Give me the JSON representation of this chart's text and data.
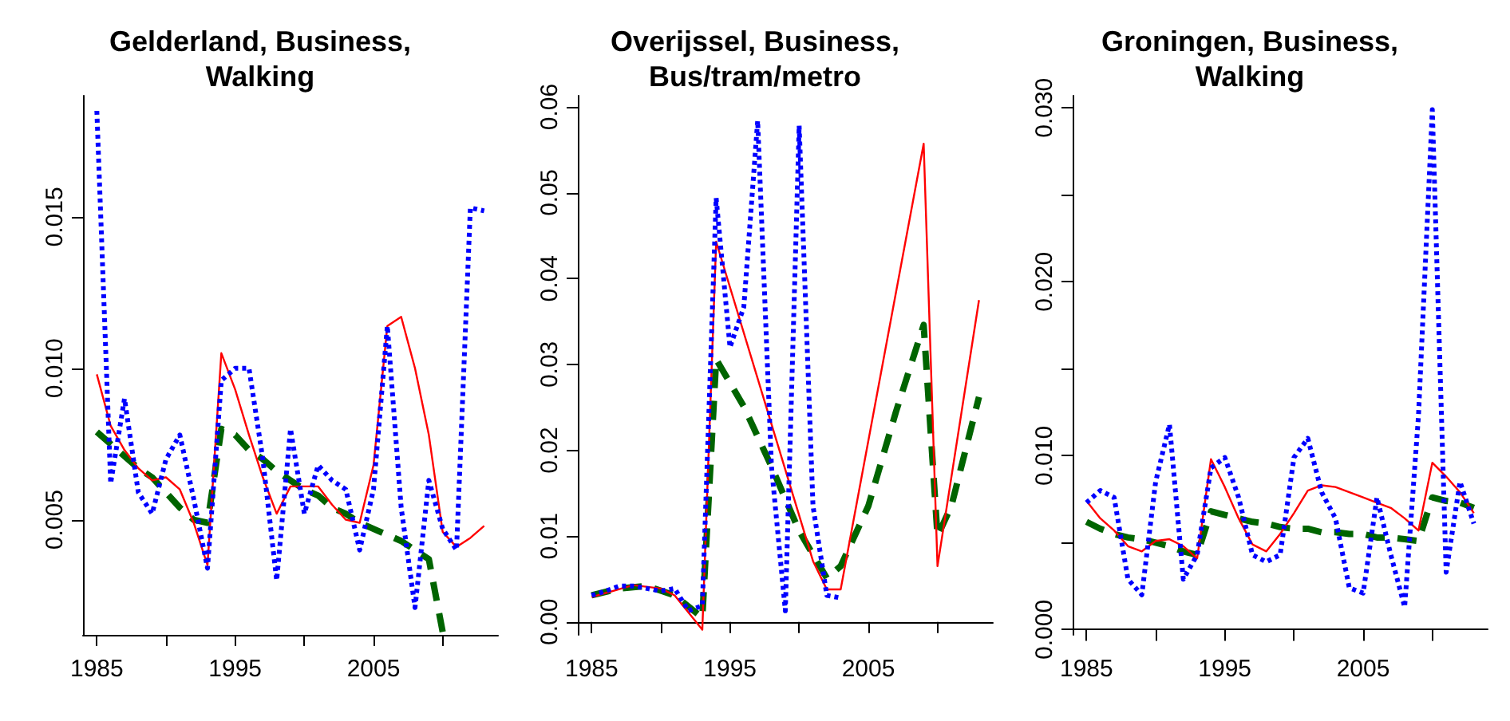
{
  "chart_data": [
    {
      "type": "line",
      "title": "Gelderland, Business,\nWalking",
      "grid": false,
      "marker": "none",
      "xlim": [
        1984,
        2014
      ],
      "xticks": [
        1985,
        {
          "value": 1990,
          "label": null
        },
        1995,
        {
          "value": 2000,
          "label": null
        },
        2005,
        {
          "value": 2010,
          "label": null
        }
      ],
      "ylim": [
        0.0012,
        0.019
      ],
      "yticks": [
        0.005,
        {
          "value": 0.01,
          "label": "0.010"
        },
        0.015
      ],
      "series": [
        {
          "color": "#0000ff",
          "line_style": "dotted",
          "x": [
            1985,
            1986,
            1987,
            1988,
            1989,
            1990,
            1991,
            1992,
            1993,
            1994,
            1995,
            1996,
            1997,
            1998,
            1999,
            2000,
            2001,
            2002,
            2003,
            2004,
            2005,
            2006,
            2007,
            2008,
            2009,
            2010,
            2011,
            2012,
            2013
          ],
          "values": [
            0.0185,
            0.0062,
            0.009,
            0.0059,
            0.0052,
            0.007,
            0.0078,
            0.0057,
            0.0034,
            0.0096,
            0.01,
            0.01,
            0.007,
            0.003,
            0.008,
            0.0052,
            0.0068,
            0.0063,
            0.006,
            0.004,
            0.006,
            0.0114,
            0.0054,
            0.0021,
            0.0063,
            0.0047,
            0.004,
            0.0153,
            0.0152
          ]
        },
        {
          "color": "#ff0000",
          "line_style": "solid",
          "x": [
            1985,
            1986,
            1987,
            1988,
            1989,
            1990,
            1991,
            1992,
            1993,
            1994,
            1995,
            1996,
            1997,
            1998,
            1999,
            2000,
            2001,
            2002,
            2003,
            2004,
            2005,
            2006,
            2007,
            2008,
            2009,
            2010,
            2011,
            2012,
            2013
          ],
          "values": [
            0.0098,
            0.0081,
            0.0073,
            0.0067,
            0.0063,
            0.0064,
            0.006,
            0.0049,
            0.0035,
            0.0105,
            0.0093,
            0.0078,
            0.0064,
            0.0052,
            0.0061,
            0.0061,
            0.0061,
            0.0055,
            0.005,
            0.0049,
            0.0068,
            0.0114,
            0.0117,
            0.01,
            0.0078,
            0.0046,
            0.0041,
            0.0044,
            0.0048
          ]
        },
        {
          "color": "#006400",
          "line_style": "dashed",
          "x": [
            1985,
            1986,
            1987,
            1988,
            1989,
            1990,
            1991,
            1992,
            1993,
            1994,
            1995,
            1996,
            1997,
            1998,
            1999,
            2000,
            2001,
            2002,
            2003,
            2004,
            2005,
            2006,
            2007,
            2008,
            2009,
            2010
          ],
          "values": [
            0.0079,
            0.0075,
            0.0071,
            0.0067,
            0.0064,
            0.0059,
            0.0054,
            0.005,
            0.0049,
            0.008,
            0.0078,
            0.0073,
            0.007,
            0.0066,
            0.0063,
            0.006,
            0.0058,
            0.0054,
            0.0052,
            0.0049,
            0.0047,
            0.0045,
            0.0043,
            0.004,
            0.0037,
            0.0013
          ]
        }
      ]
    },
    {
      "type": "line",
      "title": "Overijssel, Business,\nBus/tram/metro",
      "grid": false,
      "marker": "none",
      "xlim": [
        1984,
        2014
      ],
      "xticks": [
        1985,
        {
          "value": 1990,
          "label": null
        },
        1995,
        {
          "value": 2000,
          "label": null
        },
        2005,
        {
          "value": 2010,
          "label": null
        }
      ],
      "ylim": [
        -0.0015,
        0.0613
      ],
      "yticks": [
        {
          "value": 0,
          "label": "0.00"
        },
        0.01,
        0.02,
        0.03,
        0.04,
        0.05,
        0.06
      ],
      "series": [
        {
          "color": "#0000ff",
          "line_style": "dotted",
          "x": [
            1985,
            1986,
            1987,
            1988,
            1989,
            1990,
            1991,
            1992,
            1993,
            1994,
            1995,
            1996,
            1997,
            1998,
            1999,
            2000,
            2001,
            2002,
            2003
          ],
          "values": [
            0.0031,
            0.0036,
            0.0042,
            0.0042,
            0.0039,
            0.0036,
            0.0039,
            0.0013,
            0.0019,
            0.0494,
            0.032,
            0.0367,
            0.0584,
            0.0181,
            0.0013,
            0.0578,
            0.0135,
            0.0031,
            0.0028
          ]
        },
        {
          "color": "#ff0000",
          "line_style": "solid",
          "x": [
            1985,
            1988,
            1990,
            1991,
            1993,
            1994,
            2001,
            2002,
            2003,
            2009,
            2010,
            2013
          ],
          "values": [
            0.0029,
            0.0043,
            0.0039,
            0.0031,
            -0.0009,
            0.0443,
            0.0071,
            0.0038,
            0.0038,
            0.0557,
            0.0065,
            0.0375
          ]
        },
        {
          "color": "#006400",
          "line_style": "dashed",
          "x": [
            1985,
            1987,
            1989,
            1991,
            1993,
            1994,
            1996,
            1998,
            2000,
            2002,
            2003,
            2005,
            2007,
            2009,
            2010,
            2011,
            2013
          ],
          "values": [
            0.0031,
            0.0039,
            0.0042,
            0.0031,
            0.0005,
            0.0306,
            0.0251,
            0.0181,
            0.0106,
            0.0051,
            0.0065,
            0.0135,
            0.0245,
            0.0346,
            0.01,
            0.0135,
            0.0262
          ]
        }
      ]
    },
    {
      "type": "line",
      "title": "Groningen, Business,\nWalking",
      "grid": false,
      "marker": "none",
      "xlim": [
        1984,
        2014
      ],
      "xticks": [
        1985,
        {
          "value": 1990,
          "label": null
        },
        1995,
        {
          "value": 2000,
          "label": null
        },
        2005,
        {
          "value": 2010,
          "label": null
        }
      ],
      "ylim": [
        -0.0003,
        0.0307
      ],
      "yticks": [
        {
          "value": 0,
          "label": "0.000"
        },
        {
          "value": 0.005,
          "label": null
        },
        {
          "value": 0.01,
          "label": "0.010"
        },
        {
          "value": 0.015,
          "label": null
        },
        {
          "value": 0.02,
          "label": "0.020"
        },
        {
          "value": 0.025,
          "label": null
        },
        {
          "value": 0.03,
          "label": "0.030"
        }
      ],
      "series": [
        {
          "color": "#0000ff",
          "line_style": "dotted",
          "x": [
            1985,
            1986,
            1987,
            1988,
            1989,
            1990,
            1991,
            1992,
            1993,
            1994,
            1995,
            1996,
            1997,
            1998,
            1999,
            2000,
            2001,
            2002,
            2003,
            2004,
            2005,
            2006,
            2007,
            2008,
            2009,
            2010,
            2011,
            2012,
            2013
          ],
          "values": [
            0.0073,
            0.008,
            0.0076,
            0.0029,
            0.002,
            0.0085,
            0.0118,
            0.0029,
            0.0043,
            0.0093,
            0.0099,
            0.0076,
            0.0043,
            0.0039,
            0.0043,
            0.0099,
            0.011,
            0.0079,
            0.0064,
            0.0024,
            0.0021,
            0.0076,
            0.0043,
            0.0013,
            0.0123,
            0.0299,
            0.0033,
            0.0085,
            0.0061
          ]
        },
        {
          "color": "#ff0000",
          "line_style": "solid",
          "x": [
            1985,
            1986,
            1987,
            1988,
            1989,
            1990,
            1991,
            1992,
            1993,
            1994,
            1995,
            1996,
            1997,
            1998,
            1999,
            2000,
            2001,
            2002,
            2003,
            2004,
            2005,
            2006,
            2007,
            2008,
            2009,
            2010,
            2011,
            2012,
            2013
          ],
          "values": [
            0.0074,
            0.0064,
            0.0057,
            0.0048,
            0.0045,
            0.0051,
            0.0052,
            0.0048,
            0.0041,
            0.0098,
            0.0082,
            0.0064,
            0.0049,
            0.0045,
            0.0055,
            0.0067,
            0.008,
            0.0083,
            0.0082,
            0.0079,
            0.0076,
            0.0073,
            0.007,
            0.0064,
            0.0057,
            0.0096,
            0.0088,
            0.0079,
            0.0067
          ]
        },
        {
          "color": "#006400",
          "line_style": "dashed",
          "x": [
            1985,
            1986,
            1987,
            1988,
            1989,
            1990,
            1991,
            1992,
            1993,
            1994,
            1995,
            1996,
            1997,
            1998,
            1999,
            2000,
            2001,
            2002,
            2003,
            2004,
            2005,
            2006,
            2007,
            2008,
            2009,
            2010,
            2011,
            2012,
            2013
          ],
          "values": [
            0.0062,
            0.0058,
            0.0055,
            0.0053,
            0.0052,
            0.005,
            0.0048,
            0.0045,
            0.0043,
            0.0068,
            0.0066,
            0.0064,
            0.0062,
            0.0061,
            0.0059,
            0.0058,
            0.0058,
            0.0056,
            0.0056,
            0.0055,
            0.0055,
            0.0053,
            0.0053,
            0.0052,
            0.0051,
            0.0076,
            0.0074,
            0.0073,
            0.007
          ]
        }
      ]
    }
  ]
}
